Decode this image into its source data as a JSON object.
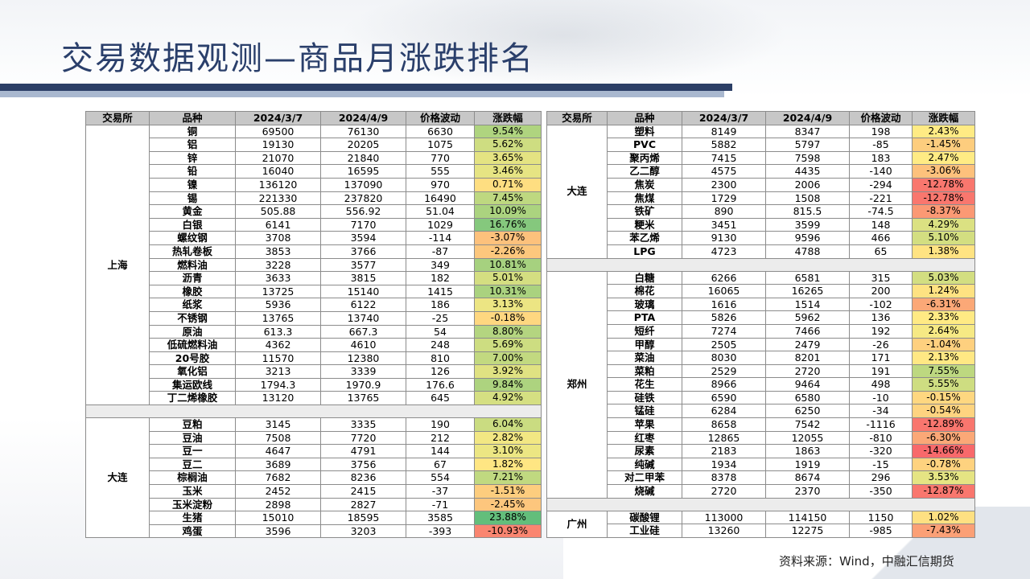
{
  "title": "交易数据观测—商品月涨跌排名",
  "source": "资料来源：Wind，中融汇信期货",
  "headers": [
    "交易所",
    "品种",
    "2024/3/7",
    "2024/4/9",
    "价格波动",
    "涨跌幅"
  ],
  "left_groups": [
    {
      "exchange": "上海",
      "rows": [
        {
          "name": "铜",
          "d1": "69500",
          "d2": "76130",
          "chg": "6630",
          "pct": "9.54%",
          "pct_value": 9.54
        },
        {
          "name": "铝",
          "d1": "19130",
          "d2": "20205",
          "chg": "1075",
          "pct": "5.62%",
          "pct_value": 5.62
        },
        {
          "name": "锌",
          "d1": "21070",
          "d2": "21840",
          "chg": "770",
          "pct": "3.65%",
          "pct_value": 3.65
        },
        {
          "name": "铅",
          "d1": "16040",
          "d2": "16595",
          "chg": "555",
          "pct": "3.46%",
          "pct_value": 3.46
        },
        {
          "name": "镍",
          "d1": "136120",
          "d2": "137090",
          "chg": "970",
          "pct": "0.71%",
          "pct_value": 0.71
        },
        {
          "name": "锡",
          "d1": "221330",
          "d2": "237820",
          "chg": "16490",
          "pct": "7.45%",
          "pct_value": 7.45
        },
        {
          "name": "黄金",
          "d1": "505.88",
          "d2": "556.92",
          "chg": "51.04",
          "pct": "10.09%",
          "pct_value": 10.09
        },
        {
          "name": "白银",
          "d1": "6141",
          "d2": "7170",
          "chg": "1029",
          "pct": "16.76%",
          "pct_value": 16.76
        },
        {
          "name": "螺纹钢",
          "d1": "3708",
          "d2": "3594",
          "chg": "-114",
          "pct": "-3.07%",
          "pct_value": -3.07
        },
        {
          "name": "热轧卷板",
          "d1": "3853",
          "d2": "3766",
          "chg": "-87",
          "pct": "-2.26%",
          "pct_value": -2.26
        },
        {
          "name": "燃料油",
          "d1": "3228",
          "d2": "3577",
          "chg": "349",
          "pct": "10.81%",
          "pct_value": 10.81
        },
        {
          "name": "沥青",
          "d1": "3633",
          "d2": "3815",
          "chg": "182",
          "pct": "5.01%",
          "pct_value": 5.01
        },
        {
          "name": "橡胶",
          "d1": "13725",
          "d2": "15140",
          "chg": "1415",
          "pct": "10.31%",
          "pct_value": 10.31
        },
        {
          "name": "纸浆",
          "d1": "5936",
          "d2": "6122",
          "chg": "186",
          "pct": "3.13%",
          "pct_value": 3.13
        },
        {
          "name": "不锈钢",
          "d1": "13765",
          "d2": "13740",
          "chg": "-25",
          "pct": "-0.18%",
          "pct_value": -0.18
        },
        {
          "name": "原油",
          "d1": "613.3",
          "d2": "667.3",
          "chg": "54",
          "pct": "8.80%",
          "pct_value": 8.8
        },
        {
          "name": "低硫燃料油",
          "d1": "4362",
          "d2": "4610",
          "chg": "248",
          "pct": "5.69%",
          "pct_value": 5.69
        },
        {
          "name": "20号胶",
          "d1": "11570",
          "d2": "12380",
          "chg": "810",
          "pct": "7.00%",
          "pct_value": 7.0
        },
        {
          "name": "氧化铝",
          "d1": "3213",
          "d2": "3339",
          "chg": "126",
          "pct": "3.92%",
          "pct_value": 3.92
        },
        {
          "name": "集运欧线",
          "d1": "1794.3",
          "d2": "1970.9",
          "chg": "176.6",
          "pct": "9.84%",
          "pct_value": 9.84
        },
        {
          "name": "丁二烯橡胶",
          "d1": "13120",
          "d2": "13765",
          "chg": "645",
          "pct": "4.92%",
          "pct_value": 4.92
        }
      ]
    },
    {
      "exchange": "大连",
      "rows": [
        {
          "name": "豆粕",
          "d1": "3145",
          "d2": "3335",
          "chg": "190",
          "pct": "6.04%",
          "pct_value": 6.04
        },
        {
          "name": "豆油",
          "d1": "7508",
          "d2": "7720",
          "chg": "212",
          "pct": "2.82%",
          "pct_value": 2.82
        },
        {
          "name": "豆一",
          "d1": "4647",
          "d2": "4791",
          "chg": "144",
          "pct": "3.10%",
          "pct_value": 3.1
        },
        {
          "name": "豆二",
          "d1": "3689",
          "d2": "3756",
          "chg": "67",
          "pct": "1.82%",
          "pct_value": 1.82
        },
        {
          "name": "棕榈油",
          "d1": "7682",
          "d2": "8236",
          "chg": "554",
          "pct": "7.21%",
          "pct_value": 7.21
        },
        {
          "name": "玉米",
          "d1": "2452",
          "d2": "2415",
          "chg": "-37",
          "pct": "-1.51%",
          "pct_value": -1.51
        },
        {
          "name": "玉米淀粉",
          "d1": "2898",
          "d2": "2827",
          "chg": "-71",
          "pct": "-2.45%",
          "pct_value": -2.45
        },
        {
          "name": "生猪",
          "d1": "15010",
          "d2": "18595",
          "chg": "3585",
          "pct": "23.88%",
          "pct_value": 23.88
        },
        {
          "name": "鸡蛋",
          "d1": "3596",
          "d2": "3203",
          "chg": "-393",
          "pct": "-10.93%",
          "pct_value": -10.93
        }
      ]
    }
  ],
  "right_groups": [
    {
      "exchange": "大连",
      "rows": [
        {
          "name": "塑料",
          "d1": "8149",
          "d2": "8347",
          "chg": "198",
          "pct": "2.43%",
          "pct_value": 2.43
        },
        {
          "name": "PVC",
          "d1": "5882",
          "d2": "5797",
          "chg": "-85",
          "pct": "-1.45%",
          "pct_value": -1.45
        },
        {
          "name": "聚丙烯",
          "d1": "7415",
          "d2": "7598",
          "chg": "183",
          "pct": "2.47%",
          "pct_value": 2.47
        },
        {
          "name": "乙二醇",
          "d1": "4575",
          "d2": "4435",
          "chg": "-140",
          "pct": "-3.06%",
          "pct_value": -3.06
        },
        {
          "name": "焦炭",
          "d1": "2300",
          "d2": "2006",
          "chg": "-294",
          "pct": "-12.78%",
          "pct_value": -12.78
        },
        {
          "name": "焦煤",
          "d1": "1729",
          "d2": "1508",
          "chg": "-221",
          "pct": "-12.78%",
          "pct_value": -12.78
        },
        {
          "name": "铁矿",
          "d1": "890",
          "d2": "815.5",
          "chg": "-74.5",
          "pct": "-8.37%",
          "pct_value": -8.37
        },
        {
          "name": "粳米",
          "d1": "3451",
          "d2": "3599",
          "chg": "148",
          "pct": "4.29%",
          "pct_value": 4.29
        },
        {
          "name": "苯乙烯",
          "d1": "9130",
          "d2": "9596",
          "chg": "466",
          "pct": "5.10%",
          "pct_value": 5.1
        },
        {
          "name": "LPG",
          "d1": "4723",
          "d2": "4788",
          "chg": "65",
          "pct": "1.38%",
          "pct_value": 1.38
        }
      ]
    },
    {
      "exchange": "郑州",
      "rows": [
        {
          "name": "白糖",
          "d1": "6266",
          "d2": "6581",
          "chg": "315",
          "pct": "5.03%",
          "pct_value": 5.03
        },
        {
          "name": "棉花",
          "d1": "16065",
          "d2": "16265",
          "chg": "200",
          "pct": "1.24%",
          "pct_value": 1.24
        },
        {
          "name": "玻璃",
          "d1": "1616",
          "d2": "1514",
          "chg": "-102",
          "pct": "-6.31%",
          "pct_value": -6.31
        },
        {
          "name": "PTA",
          "d1": "5826",
          "d2": "5962",
          "chg": "136",
          "pct": "2.33%",
          "pct_value": 2.33
        },
        {
          "name": "短纤",
          "d1": "7274",
          "d2": "7466",
          "chg": "192",
          "pct": "2.64%",
          "pct_value": 2.64
        },
        {
          "name": "甲醇",
          "d1": "2505",
          "d2": "2479",
          "chg": "-26",
          "pct": "-1.04%",
          "pct_value": -1.04
        },
        {
          "name": "菜油",
          "d1": "8030",
          "d2": "8201",
          "chg": "171",
          "pct": "2.13%",
          "pct_value": 2.13
        },
        {
          "name": "菜粕",
          "d1": "2529",
          "d2": "2720",
          "chg": "191",
          "pct": "7.55%",
          "pct_value": 7.55
        },
        {
          "name": "花生",
          "d1": "8966",
          "d2": "9464",
          "chg": "498",
          "pct": "5.55%",
          "pct_value": 5.55
        },
        {
          "name": "硅铁",
          "d1": "6590",
          "d2": "6580",
          "chg": "-10",
          "pct": "-0.15%",
          "pct_value": -0.15
        },
        {
          "name": "锰硅",
          "d1": "6284",
          "d2": "6250",
          "chg": "-34",
          "pct": "-0.54%",
          "pct_value": -0.54
        },
        {
          "name": "苹果",
          "d1": "8658",
          "d2": "7542",
          "chg": "-1116",
          "pct": "-12.89%",
          "pct_value": -12.89
        },
        {
          "name": "红枣",
          "d1": "12865",
          "d2": "12055",
          "chg": "-810",
          "pct": "-6.30%",
          "pct_value": -6.3
        },
        {
          "name": "尿素",
          "d1": "2183",
          "d2": "1863",
          "chg": "-320",
          "pct": "-14.66%",
          "pct_value": -14.66
        },
        {
          "name": "纯碱",
          "d1": "1934",
          "d2": "1919",
          "chg": "-15",
          "pct": "-0.78%",
          "pct_value": -0.78
        },
        {
          "name": "对二甲苯",
          "d1": "8378",
          "d2": "8674",
          "chg": "296",
          "pct": "3.53%",
          "pct_value": 3.53
        },
        {
          "name": "烧碱",
          "d1": "2720",
          "d2": "2370",
          "chg": "-350",
          "pct": "-12.87%",
          "pct_value": -12.87
        }
      ]
    },
    {
      "exchange": "广州",
      "rows": [
        {
          "name": "碳酸锂",
          "d1": "113000",
          "d2": "114150",
          "chg": "1150",
          "pct": "1.02%",
          "pct_value": 1.02
        },
        {
          "name": "工业硅",
          "d1": "13260",
          "d2": "12275",
          "chg": "-985",
          "pct": "-7.43%",
          "pct_value": -7.43
        }
      ]
    }
  ],
  "colors": {
    "header_bg": "#c7c7c7",
    "max_green": "#63be7b",
    "mid_yellow": "#ffeb84",
    "max_red": "#f8696b",
    "title_color": "#2a3f6b"
  }
}
